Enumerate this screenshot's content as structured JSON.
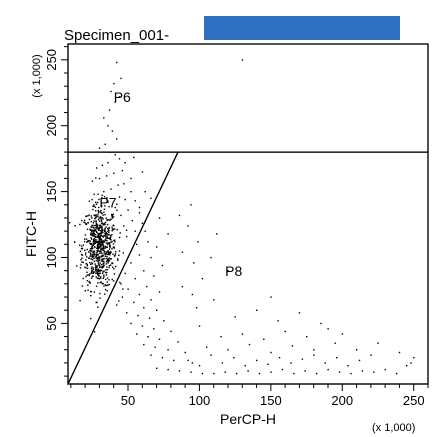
{
  "title": "Specimen_001-",
  "redaction_color": "#2f6fbf",
  "chart_data": {
    "type": "scatter",
    "xlabel": "PerCP-H",
    "ylabel": "FITC-H",
    "x_scale_note": "(x 1,000)",
    "y_scale_note": "(x 1,000)",
    "xlim": [
      8,
      260
    ],
    "ylim": [
      4,
      262
    ],
    "x_ticks": [
      50,
      100,
      150,
      200,
      250
    ],
    "y_ticks": [
      50,
      100,
      150,
      200,
      250
    ],
    "x_tick_labels": [
      "50",
      "100",
      "150",
      "200",
      "250"
    ],
    "y_tick_labels": [
      "50",
      "100",
      "150",
      "200",
      "250"
    ],
    "gates": [
      {
        "name": "P6",
        "shape": "rectangle",
        "x_range": [
          8,
          260
        ],
        "y_range": [
          180,
          262
        ],
        "label_at": [
          40,
          218
        ]
      },
      {
        "name": "P7",
        "shape": "polygon",
        "vertices": [
          [
            8,
            4
          ],
          [
            85,
            180
          ],
          [
            8,
            180
          ]
        ],
        "label_at": [
          30,
          138
        ]
      },
      {
        "name": "P8",
        "shape": "polygon",
        "vertices": [
          [
            8,
            4
          ],
          [
            260,
            4
          ],
          [
            260,
            180
          ],
          [
            85,
            180
          ]
        ],
        "label_at": [
          118,
          86
        ]
      }
    ],
    "dense_cluster": {
      "center": [
        30,
        108
      ],
      "spread_x": 6,
      "spread_y": 16,
      "count": 700
    },
    "scatter_points": [
      [
        42,
        248
      ],
      [
        45,
        236
      ],
      [
        40,
        232
      ],
      [
        38,
        226
      ],
      [
        44,
        222
      ],
      [
        41,
        218
      ],
      [
        37,
        212
      ],
      [
        33,
        206
      ],
      [
        36,
        200
      ],
      [
        39,
        196
      ],
      [
        42,
        190
      ],
      [
        34,
        186
      ],
      [
        30,
        183
      ],
      [
        37,
        180
      ],
      [
        41,
        178
      ],
      [
        44,
        175
      ],
      [
        36,
        172
      ],
      [
        32,
        170
      ],
      [
        28,
        168
      ],
      [
        46,
        166
      ],
      [
        40,
        164
      ],
      [
        35,
        162
      ],
      [
        30,
        160
      ],
      [
        25,
        158
      ],
      [
        47,
        156
      ],
      [
        43,
        155
      ],
      [
        38,
        152
      ],
      [
        33,
        150
      ],
      [
        52,
        150
      ],
      [
        29,
        148
      ],
      [
        44,
        146
      ],
      [
        48,
        144
      ],
      [
        36,
        142
      ],
      [
        55,
        143
      ],
      [
        26,
        140
      ],
      [
        41,
        138
      ],
      [
        50,
        136
      ],
      [
        58,
        134
      ],
      [
        45,
        132
      ],
      [
        39,
        130
      ],
      [
        53,
        128
      ],
      [
        60,
        126
      ],
      [
        47,
        124
      ],
      [
        62,
        120
      ],
      [
        35,
        118
      ],
      [
        49,
        116
      ],
      [
        64,
        112
      ],
      [
        56,
        110
      ],
      [
        70,
        108
      ],
      [
        44,
        105
      ],
      [
        58,
        102
      ],
      [
        66,
        100
      ],
      [
        52,
        96
      ],
      [
        74,
        94
      ],
      [
        61,
        90
      ],
      [
        48,
        88
      ],
      [
        68,
        86
      ],
      [
        55,
        84
      ],
      [
        45,
        80
      ],
      [
        63,
        78
      ],
      [
        50,
        76
      ],
      [
        72,
        74
      ],
      [
        58,
        72
      ],
      [
        46,
        70
      ],
      [
        66,
        68
      ],
      [
        54,
        66
      ],
      [
        42,
        64
      ],
      [
        61,
        62
      ],
      [
        70,
        60
      ],
      [
        49,
        58
      ],
      [
        57,
        56
      ],
      [
        65,
        54
      ],
      [
        75,
        52
      ],
      [
        52,
        50
      ],
      [
        60,
        48
      ],
      [
        68,
        46
      ],
      [
        80,
        44
      ],
      [
        56,
        42
      ],
      [
        64,
        40
      ],
      [
        72,
        38
      ],
      [
        85,
        36
      ],
      [
        61,
        34
      ],
      [
        69,
        32
      ],
      [
        78,
        30
      ],
      [
        90,
        28
      ],
      [
        66,
        26
      ],
      [
        74,
        24
      ],
      [
        82,
        22
      ],
      [
        95,
        20
      ],
      [
        100,
        18
      ],
      [
        70,
        16
      ],
      [
        78,
        15
      ],
      [
        86,
        14
      ],
      [
        94,
        13
      ],
      [
        102,
        12
      ],
      [
        110,
        12
      ],
      [
        118,
        13
      ],
      [
        126,
        12
      ],
      [
        134,
        14
      ],
      [
        142,
        12
      ],
      [
        150,
        13
      ],
      [
        158,
        15
      ],
      [
        166,
        12
      ],
      [
        174,
        14
      ],
      [
        182,
        12
      ],
      [
        190,
        15
      ],
      [
        198,
        13
      ],
      [
        206,
        12
      ],
      [
        214,
        14
      ],
      [
        222,
        13
      ],
      [
        230,
        15
      ],
      [
        238,
        12
      ],
      [
        92,
        22
      ],
      [
        108,
        26
      ],
      [
        116,
        20
      ],
      [
        124,
        24
      ],
      [
        132,
        18
      ],
      [
        140,
        22
      ],
      [
        148,
        19
      ],
      [
        156,
        24
      ],
      [
        164,
        20
      ],
      [
        172,
        23
      ],
      [
        180,
        26
      ],
      [
        188,
        20
      ],
      [
        196,
        24
      ],
      [
        204,
        18
      ],
      [
        212,
        22
      ],
      [
        220,
        26
      ],
      [
        105,
        32
      ],
      [
        120,
        30
      ],
      [
        135,
        34
      ],
      [
        150,
        28
      ],
      [
        165,
        33
      ],
      [
        180,
        30
      ],
      [
        195,
        35
      ],
      [
        210,
        30
      ],
      [
        115,
        40
      ],
      [
        130,
        42
      ],
      [
        145,
        38
      ],
      [
        160,
        44
      ],
      [
        175,
        40
      ],
      [
        190,
        46
      ],
      [
        100,
        48
      ],
      [
        125,
        55
      ],
      [
        140,
        60
      ],
      [
        155,
        52
      ],
      [
        98,
        62
      ],
      [
        110,
        68
      ],
      [
        95,
        72
      ],
      [
        88,
        78
      ],
      [
        102,
        84
      ],
      [
        120,
        90
      ],
      [
        96,
        96
      ],
      [
        108,
        100
      ],
      [
        88,
        104
      ],
      [
        99,
        112
      ],
      [
        112,
        118
      ],
      [
        92,
        124
      ],
      [
        86,
        132
      ],
      [
        94,
        140
      ],
      [
        150,
        70
      ],
      [
        170,
        58
      ],
      [
        185,
        50
      ],
      [
        200,
        42
      ],
      [
        225,
        35
      ],
      [
        240,
        28
      ],
      [
        245,
        18
      ],
      [
        250,
        24
      ],
      [
        130,
        250
      ],
      [
        248,
        20
      ],
      [
        55,
        120
      ],
      [
        58,
        138
      ],
      [
        62,
        150
      ],
      [
        52,
        160
      ],
      [
        48,
        172
      ],
      [
        54,
        176
      ],
      [
        60,
        165
      ],
      [
        66,
        145
      ],
      [
        72,
        130
      ],
      [
        78,
        118
      ]
    ]
  }
}
